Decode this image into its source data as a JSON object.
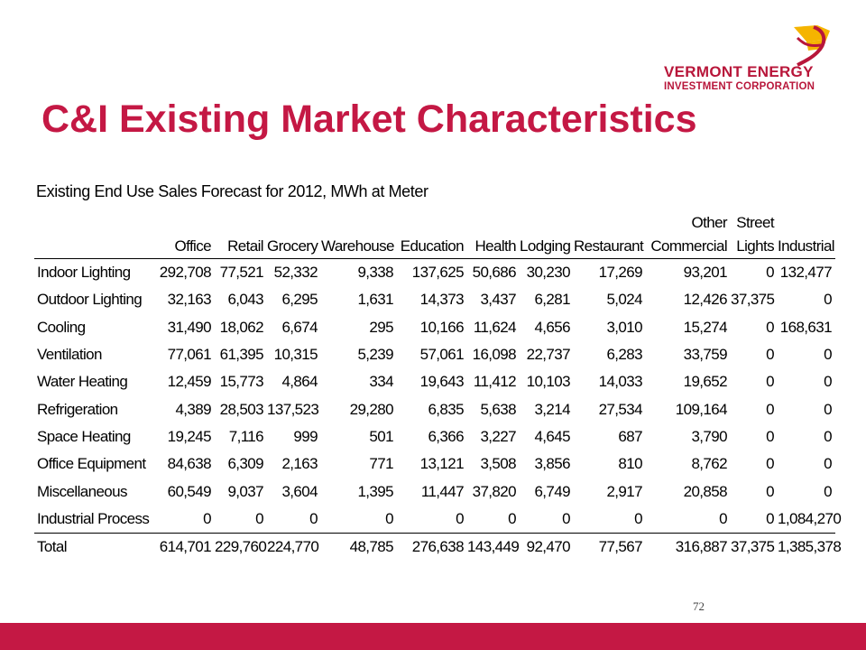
{
  "brand": {
    "line1": "VERMONT ENERGY",
    "line2": "INVESTMENT CORPORATION",
    "accent_color": "#c41844",
    "logo_colors": [
      "#f5b400",
      "#b8163a"
    ]
  },
  "slide": {
    "title": "C&I Existing Market Characteristics",
    "page_number": "72"
  },
  "table": {
    "caption": "Existing End Use Sales Forecast for 2012, MWh at Meter",
    "columns": [
      {
        "line1": "",
        "line2": ""
      },
      {
        "line1": "",
        "line2": "Office"
      },
      {
        "line1": "",
        "line2": "Retail"
      },
      {
        "line1": "",
        "line2": "Grocery"
      },
      {
        "line1": "",
        "line2": "Warehouse"
      },
      {
        "line1": "",
        "line2": "Education"
      },
      {
        "line1": "",
        "line2": "Health"
      },
      {
        "line1": "",
        "line2": "Lodging"
      },
      {
        "line1": "",
        "line2": "Restaurant"
      },
      {
        "line1": "Other",
        "line2": "Commercial"
      },
      {
        "line1": "Street",
        "line2": "Lights"
      },
      {
        "line1": "",
        "line2": "Industrial"
      }
    ],
    "rows": [
      {
        "label": "Indoor Lighting",
        "values": [
          "292,708",
          "77,521",
          "52,332",
          "9,338",
          "137,625",
          "50,686",
          "30,230",
          "17,269",
          "93,201",
          "0",
          "132,477"
        ]
      },
      {
        "label": "Outdoor Lighting",
        "values": [
          "32,163",
          "6,043",
          "6,295",
          "1,631",
          "14,373",
          "3,437",
          "6,281",
          "5,024",
          "12,426",
          "37,375",
          "0"
        ]
      },
      {
        "label": "Cooling",
        "values": [
          "31,490",
          "18,062",
          "6,674",
          "295",
          "10,166",
          "11,624",
          "4,656",
          "3,010",
          "15,274",
          "0",
          "168,631"
        ]
      },
      {
        "label": "Ventilation",
        "values": [
          "77,061",
          "61,395",
          "10,315",
          "5,239",
          "57,061",
          "16,098",
          "22,737",
          "6,283",
          "33,759",
          "0",
          "0"
        ]
      },
      {
        "label": "Water Heating",
        "values": [
          "12,459",
          "15,773",
          "4,864",
          "334",
          "19,643",
          "11,412",
          "10,103",
          "14,033",
          "19,652",
          "0",
          "0"
        ]
      },
      {
        "label": "Refrigeration",
        "values": [
          "4,389",
          "28,503",
          "137,523",
          "29,280",
          "6,835",
          "5,638",
          "3,214",
          "27,534",
          "109,164",
          "0",
          "0"
        ]
      },
      {
        "label": "Space Heating",
        "values": [
          "19,245",
          "7,116",
          "999",
          "501",
          "6,366",
          "3,227",
          "4,645",
          "687",
          "3,790",
          "0",
          "0"
        ]
      },
      {
        "label": "Office Equipment",
        "values": [
          "84,638",
          "6,309",
          "2,163",
          "771",
          "13,121",
          "3,508",
          "3,856",
          "810",
          "8,762",
          "0",
          "0"
        ]
      },
      {
        "label": "Miscellaneous",
        "values": [
          "60,549",
          "9,037",
          "3,604",
          "1,395",
          "11,447",
          "37,820",
          "6,749",
          "2,917",
          "20,858",
          "0",
          "0"
        ]
      },
      {
        "label": "Industrial Process",
        "values": [
          "0",
          "0",
          "0",
          "0",
          "0",
          "0",
          "0",
          "0",
          "0",
          "0",
          "1,084,270"
        ]
      }
    ],
    "total": {
      "label": "Total",
      "values": [
        "614,701",
        "229,760",
        "224,770",
        "48,785",
        "276,638",
        "143,449",
        "92,470",
        "77,567",
        "316,887",
        "37,375",
        "1,385,378"
      ]
    }
  }
}
